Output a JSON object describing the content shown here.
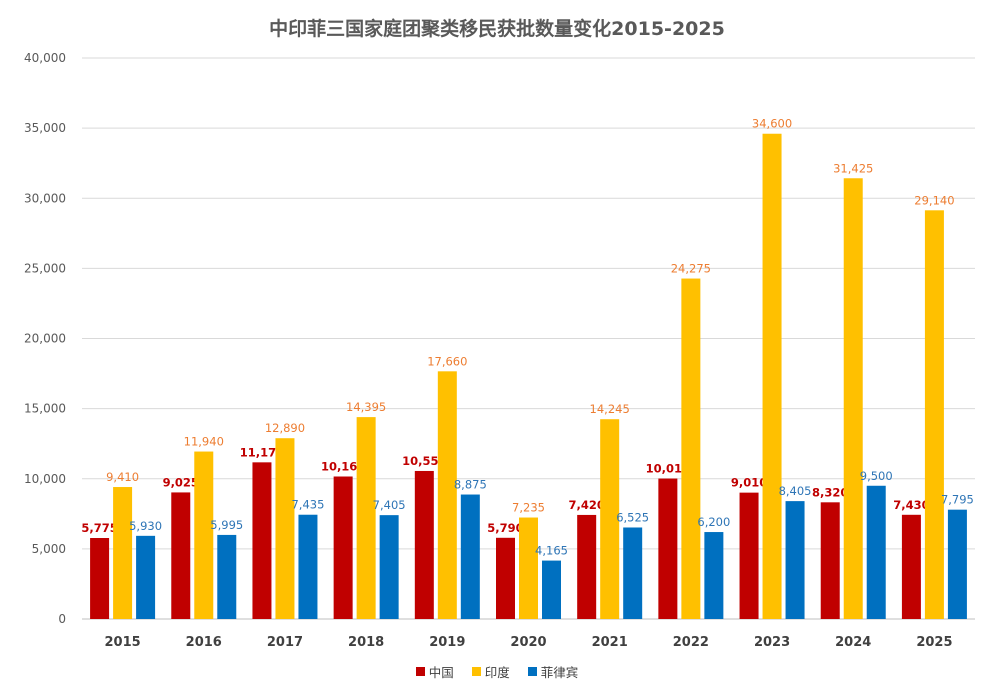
{
  "chart_data": {
    "type": "bar",
    "title": "中印菲三国家庭团聚类移民获批数量变化2015-2025",
    "categories": [
      "2015",
      "2016",
      "2017",
      "2018",
      "2019",
      "2020",
      "2021",
      "2022",
      "2023",
      "2024",
      "2025"
    ],
    "series": [
      {
        "name": "中国",
        "color": "#C00000",
        "values": [
          5775,
          9025,
          11170,
          10160,
          10555,
          5790,
          7420,
          10015,
          9010,
          8320,
          7430
        ],
        "labels": [
          "5,775",
          "9,025",
          "11,170",
          "10,160",
          "10,555",
          "5,790",
          "7,420",
          "10,015",
          "9,010",
          "8,320",
          "7,430"
        ],
        "label_color": "#C00000"
      },
      {
        "name": "印度",
        "color": "#FFC000",
        "values": [
          9410,
          11940,
          12890,
          14395,
          17660,
          7235,
          14245,
          24275,
          34600,
          31425,
          29140
        ],
        "labels": [
          "9,410",
          "11,940",
          "12,890",
          "14,395",
          "17,660",
          "7,235",
          "14,245",
          "24,275",
          "34,600",
          "31,425",
          "29,140"
        ],
        "label_color": "#ED7D31"
      },
      {
        "name": "菲律宾",
        "color": "#0070C0",
        "values": [
          5930,
          5995,
          7435,
          7405,
          8875,
          4165,
          6525,
          6200,
          8405,
          9500,
          7795
        ],
        "labels": [
          "5,930",
          "5,995",
          "7,435",
          "7,405",
          "8,875",
          "4,165",
          "6,525",
          "6,200",
          "8,405",
          "9,500",
          "7,795"
        ],
        "label_color": "#2E75B6"
      }
    ],
    "ylim": [
      0,
      40000
    ],
    "yticks": [
      0,
      5000,
      10000,
      15000,
      20000,
      25000,
      30000,
      35000,
      40000
    ],
    "ytick_labels": [
      "0",
      "5,000",
      "10,000",
      "15,000",
      "20,000",
      "25,000",
      "30,000",
      "35,000",
      "40,000"
    ],
    "xlabel": "",
    "ylabel": "",
    "grid": true,
    "legend_position": "bottom"
  }
}
